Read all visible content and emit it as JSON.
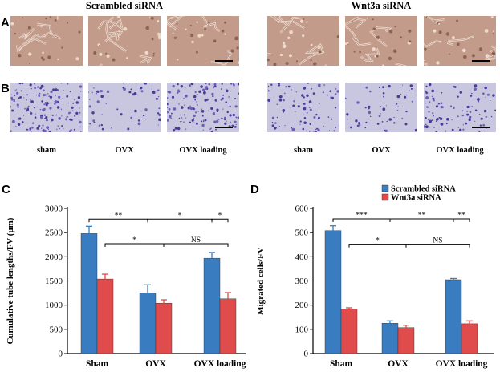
{
  "panel_a_b": {
    "groups": [
      {
        "title": "Scrambled siRNA"
      },
      {
        "title": "Wnt3a siRNA"
      }
    ],
    "row_letters": [
      "A",
      "B"
    ],
    "conditions": [
      "sham",
      "OVX",
      "OVX loading"
    ]
  },
  "chart_data": [
    {
      "panel": "C",
      "type": "bar",
      "ylabel": "Cumulative tube lengths/FV (μm)",
      "ylim": [
        0,
        3000
      ],
      "yticks": [
        "0",
        "500",
        "1000",
        "1500",
        "2000",
        "2500",
        "3000"
      ],
      "categories": [
        "Sham",
        "OVX",
        "OVX loading"
      ],
      "series": [
        {
          "name": "Scrambled siRNA",
          "color": "#3a7cc0",
          "values": [
            2480,
            1250,
            1970
          ],
          "errors": [
            150,
            170,
            120
          ]
        },
        {
          "name": "Wnt3a siRNA",
          "color": "#e04c4c",
          "values": [
            1540,
            1040,
            1130
          ],
          "errors": [
            100,
            70,
            130
          ]
        }
      ],
      "significance": [
        {
          "from": "Scrambled siRNA:Sham",
          "to": "Scrambled siRNA:OVX",
          "label": "**"
        },
        {
          "from": "Scrambled siRNA:OVX",
          "to": "Scrambled siRNA:OVX loading",
          "label": "*"
        },
        {
          "from": "Scrambled siRNA:OVX loading",
          "to": "Wnt3a siRNA:OVX loading",
          "label": "*"
        },
        {
          "from": "Wnt3a siRNA:Sham",
          "to": "Wnt3a siRNA:OVX",
          "label": "*"
        },
        {
          "from": "Wnt3a siRNA:OVX",
          "to": "Wnt3a siRNA:OVX loading",
          "label": "NS"
        }
      ]
    },
    {
      "panel": "D",
      "type": "bar",
      "ylabel": "Migrated cells/FV",
      "ylim": [
        0,
        600
      ],
      "yticks": [
        "0",
        "100",
        "200",
        "300",
        "400",
        "500",
        "600"
      ],
      "categories": [
        "Sham",
        "OVX",
        "OVX loading"
      ],
      "legend": {
        "position": "top-right",
        "entries": [
          "Scrambled siRNA",
          "Wnt3a siRNA"
        ]
      },
      "series": [
        {
          "name": "Scrambled siRNA",
          "color": "#3a7cc0",
          "values": [
            508,
            125,
            305
          ],
          "errors": [
            20,
            10,
            5
          ]
        },
        {
          "name": "Wnt3a siRNA",
          "color": "#e04c4c",
          "values": [
            183,
            107,
            123
          ],
          "errors": [
            6,
            10,
            12
          ]
        }
      ],
      "significance": [
        {
          "from": "Scrambled siRNA:Sham",
          "to": "Scrambled siRNA:OVX",
          "label": "***"
        },
        {
          "from": "Scrambled siRNA:OVX",
          "to": "Scrambled siRNA:OVX loading",
          "label": "**"
        },
        {
          "from": "Scrambled siRNA:OVX loading",
          "to": "Wnt3a siRNA:OVX loading",
          "label": "**"
        },
        {
          "from": "Wnt3a siRNA:Sham",
          "to": "Wnt3a siRNA:OVX",
          "label": "*"
        },
        {
          "from": "Wnt3a siRNA:OVX",
          "to": "Wnt3a siRNA:OVX loading",
          "label": "NS"
        }
      ]
    }
  ]
}
